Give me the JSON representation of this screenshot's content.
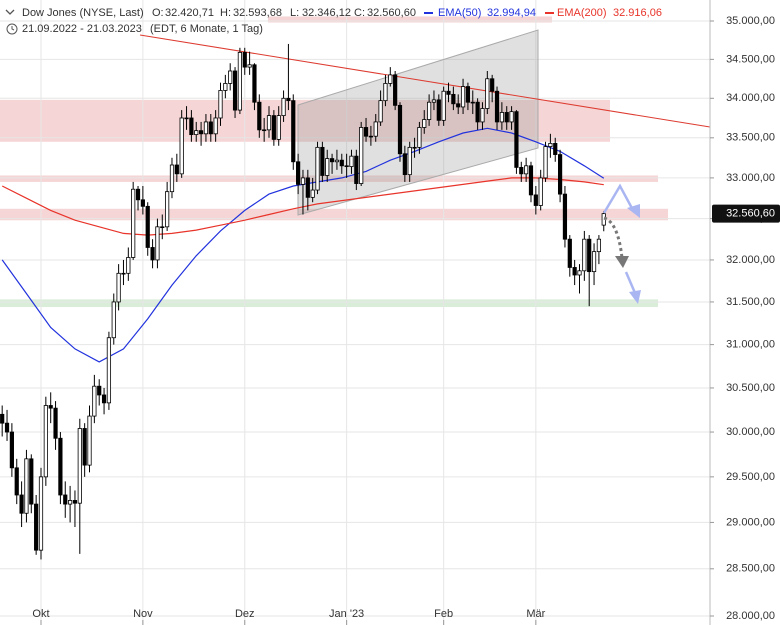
{
  "header": {
    "title": "Dow Jones (NYSE, Last)",
    "ohlc": [
      {
        "label": "O:",
        "value": "32.420,71"
      },
      {
        "label": "H:",
        "value": "32.593,68"
      },
      {
        "label": "L:",
        "value": "32.346,12"
      },
      {
        "label": "C:",
        "value": "32.560,60"
      }
    ],
    "range": "21.09.2022 - 21.03.2023",
    "info": "(EDT, 6 Monate, 1 Tag)"
  },
  "chart_data": {
    "type": "candlestick",
    "log_scale": true,
    "grid": true,
    "open": [
      30200,
      30100,
      30000,
      29600,
      29300,
      29100,
      29700,
      29200,
      28700,
      29500,
      30300,
      30270,
      29930,
      29300,
      29200,
      29240,
      29210,
      30040,
      29630,
      30180,
      30520,
      30420,
      30330,
      31080,
      31500,
      31840,
      31840,
      32030,
      32860,
      32730,
      32650,
      32150,
      32000,
      32400,
      32400,
      32830,
      33160,
      33050,
      33750,
      33750,
      33540,
      33590,
      33550,
      33700,
      33550,
      33750,
      34100,
      34190,
      34350,
      33850,
      34590,
      34400,
      34430,
      33950,
      33600,
      33600,
      33780,
      33480,
      33780,
      34000,
      33970,
      33200,
      32920,
      33000,
      32760,
      32850,
      33380,
      33030,
      33240,
      33200,
      33220,
      33150,
      33140,
      33270,
      32930,
      33630,
      33520,
      33520,
      33700,
      33970,
      34190,
      34300,
      33910,
      33300,
      33040,
      33380,
      33380,
      33630,
      33730,
      33950,
      33980,
      33720,
      34090,
      34050,
      33930,
      33890,
      34150,
      33950,
      33950,
      33700,
      33870,
      34250,
      34090,
      33700,
      33820,
      33700,
      33830,
      33130,
      33050,
      33150,
      32790,
      32660,
      33000,
      33390,
      33430,
      33290,
      32800,
      32250,
      31910,
      31820,
      31870,
      32250,
      31860,
      32100,
      32420.71
    ],
    "high": [
      30300,
      30250,
      30100,
      29700,
      29450,
      29800,
      29750,
      29300,
      29600,
      30400,
      30450,
      30350,
      30000,
      29450,
      29400,
      29350,
      30150,
      30100,
      30300,
      30650,
      30600,
      30500,
      31150,
      31600,
      31950,
      32000,
      32150,
      32950,
      32900,
      32900,
      32700,
      32250,
      32500,
      32550,
      32950,
      33250,
      33300,
      33850,
      33900,
      33850,
      33700,
      33700,
      33800,
      33800,
      33850,
      34200,
      34300,
      34450,
      34400,
      34650,
      34650,
      34600,
      34450,
      34050,
      33750,
      33900,
      33850,
      33900,
      34100,
      34700,
      34050,
      33300,
      33100,
      33100,
      33000,
      33450,
      33450,
      33350,
      33300,
      33350,
      33300,
      33300,
      33350,
      33350,
      33700,
      33750,
      33650,
      33800,
      34100,
      34300,
      34400,
      34350,
      33950,
      33400,
      33450,
      33500,
      33700,
      33850,
      34050,
      34100,
      34050,
      34150,
      34200,
      34150,
      34050,
      34250,
      34200,
      34100,
      34000,
      33950,
      34350,
      34300,
      34150,
      33950,
      33900,
      33900,
      33850,
      33200,
      33250,
      33200,
      32900,
      33100,
      33450,
      33550,
      33500,
      33350,
      32900,
      32300,
      32000,
      31950,
      32350,
      32300,
      32200,
      32300,
      32593.68
    ],
    "low": [
      29950,
      29900,
      29500,
      29200,
      28950,
      29000,
      29100,
      28650,
      28600,
      29400,
      30100,
      29800,
      29200,
      29050,
      29000,
      28950,
      28660,
      29500,
      29550,
      30100,
      30300,
      30200,
      30250,
      31000,
      31400,
      31700,
      31750,
      32000,
      32600,
      32550,
      32050,
      31900,
      31900,
      32250,
      32350,
      32750,
      32950,
      33000,
      33600,
      33450,
      33450,
      33400,
      33450,
      33450,
      33450,
      33650,
      34000,
      34100,
      33750,
      33800,
      34300,
      34300,
      33850,
      33500,
      33450,
      33500,
      33400,
      33400,
      33700,
      33850,
      33100,
      32800,
      32550,
      32600,
      32700,
      32800,
      32950,
      32950,
      33050,
      33100,
      33050,
      33000,
      33050,
      32850,
      32900,
      33450,
      33400,
      33450,
      33650,
      33900,
      34150,
      33850,
      33200,
      32950,
      32950,
      33250,
      33300,
      33550,
      33650,
      33850,
      33650,
      33650,
      33950,
      33850,
      33800,
      33800,
      33850,
      33800,
      33600,
      33600,
      33800,
      33950,
      33600,
      33600,
      33600,
      33600,
      33050,
      32950,
      32950,
      32700,
      32550,
      32600,
      32950,
      33250,
      33200,
      32700,
      32150,
      31800,
      31700,
      31600,
      31750,
      31450,
      31700,
      31950,
      32346.12
    ],
    "close": [
      30100,
      30000,
      29600,
      29300,
      29100,
      29700,
      29200,
      28700,
      29500,
      30300,
      30270,
      29930,
      29300,
      29200,
      29240,
      29210,
      30040,
      29630,
      30180,
      30520,
      30420,
      30330,
      31080,
      31500,
      31840,
      31840,
      32030,
      32860,
      32730,
      32650,
      32150,
      32000,
      32400,
      32400,
      32830,
      33160,
      33050,
      33750,
      33750,
      33540,
      33590,
      33550,
      33700,
      33550,
      33750,
      34100,
      34190,
      34350,
      33850,
      34590,
      34400,
      34430,
      33950,
      33600,
      33600,
      33780,
      33480,
      33780,
      34000,
      33970,
      33200,
      32920,
      33000,
      32760,
      32850,
      33380,
      33030,
      33240,
      33200,
      33220,
      33150,
      33140,
      33270,
      32930,
      33630,
      33520,
      33520,
      33700,
      33970,
      34190,
      34300,
      33910,
      33300,
      33040,
      33380,
      33380,
      33630,
      33730,
      33950,
      33980,
      33720,
      34090,
      34050,
      33930,
      33890,
      34150,
      33950,
      33950,
      33700,
      33870,
      34250,
      34090,
      33700,
      33820,
      33700,
      33830,
      33130,
      33050,
      33150,
      32790,
      32660,
      33000,
      33390,
      33430,
      33290,
      32800,
      32250,
      31910,
      31820,
      31870,
      32250,
      31860,
      32100,
      32250,
      32560.6
    ],
    "last_price_label": "32.560,60",
    "series": [
      {
        "name": "EMA(50)",
        "color": "#2233dd",
        "value_label": "32.994,94",
        "x": [
          0,
          5,
          10,
          15,
          20,
          25,
          30,
          35,
          40,
          45,
          50,
          55,
          60,
          65,
          70,
          75,
          80,
          85,
          90,
          95,
          100,
          105,
          110,
          115,
          120,
          124
        ],
        "values": [
          32000,
          31600,
          31200,
          30950,
          30800,
          30950,
          31300,
          31700,
          32050,
          32350,
          32600,
          32800,
          32900,
          32950,
          33000,
          33080,
          33220,
          33330,
          33450,
          33560,
          33620,
          33560,
          33450,
          33330,
          33150,
          32995
        ]
      },
      {
        "name": "EMA(200)",
        "color": "#e8342a",
        "value_label": "32.916,06",
        "x": [
          0,
          5,
          10,
          15,
          20,
          25,
          30,
          35,
          40,
          45,
          50,
          55,
          60,
          65,
          70,
          75,
          80,
          85,
          90,
          95,
          100,
          105,
          110,
          115,
          120,
          124
        ],
        "values": [
          32900,
          32750,
          32600,
          32480,
          32400,
          32320,
          32300,
          32320,
          32360,
          32420,
          32480,
          32550,
          32620,
          32680,
          32720,
          32760,
          32800,
          32840,
          32880,
          32920,
          32960,
          33000,
          33000,
          32980,
          32950,
          32916
        ]
      }
    ],
    "zones": [
      {
        "low": 34980,
        "high": 35060,
        "color": "#f2caca"
      },
      {
        "low": 33450,
        "high": 33980,
        "color": "#f2caca"
      },
      {
        "low": 32950,
        "high": 33030,
        "color": "#f2caca"
      },
      {
        "low": 32480,
        "high": 32620,
        "color": "#f2caca"
      },
      {
        "low": 31440,
        "high": 31530,
        "color": "#cfe9cf"
      }
    ],
    "xlim": [
      -0.45,
      145.9
    ],
    "xticks": [
      {
        "value": 8,
        "label": "Okt"
      },
      {
        "value": 29,
        "label": "Nov"
      },
      {
        "value": 50,
        "label": "Dez"
      },
      {
        "value": 71,
        "label": "Jan '23"
      },
      {
        "value": 91,
        "label": "Feb"
      },
      {
        "value": 110,
        "label": "Mär"
      }
    ],
    "ylim": [
      28000,
      35000
    ],
    "yticks": [
      {
        "value": 28000,
        "label": "28.000,00"
      },
      {
        "value": 28500,
        "label": "28.500,00"
      },
      {
        "value": 29000,
        "label": "29.000,00"
      },
      {
        "value": 29500,
        "label": "29.500,00"
      },
      {
        "value": 30000,
        "label": "30.000,00"
      },
      {
        "value": 30500,
        "label": "30.500,00"
      },
      {
        "value": 31000,
        "label": "31.000,00"
      },
      {
        "value": 31500,
        "label": "31.500,00"
      },
      {
        "value": 32000,
        "label": "32.000,00"
      },
      {
        "value": 32500,
        "label": "32.500,00"
      },
      {
        "value": 33000,
        "label": "33.000,00"
      },
      {
        "value": 33500,
        "label": "33.500,00"
      },
      {
        "value": 34000,
        "label": "34.000,00"
      },
      {
        "value": 34500,
        "label": "34.500,00"
      },
      {
        "value": 35000,
        "label": "35.000,00"
      }
    ]
  }
}
